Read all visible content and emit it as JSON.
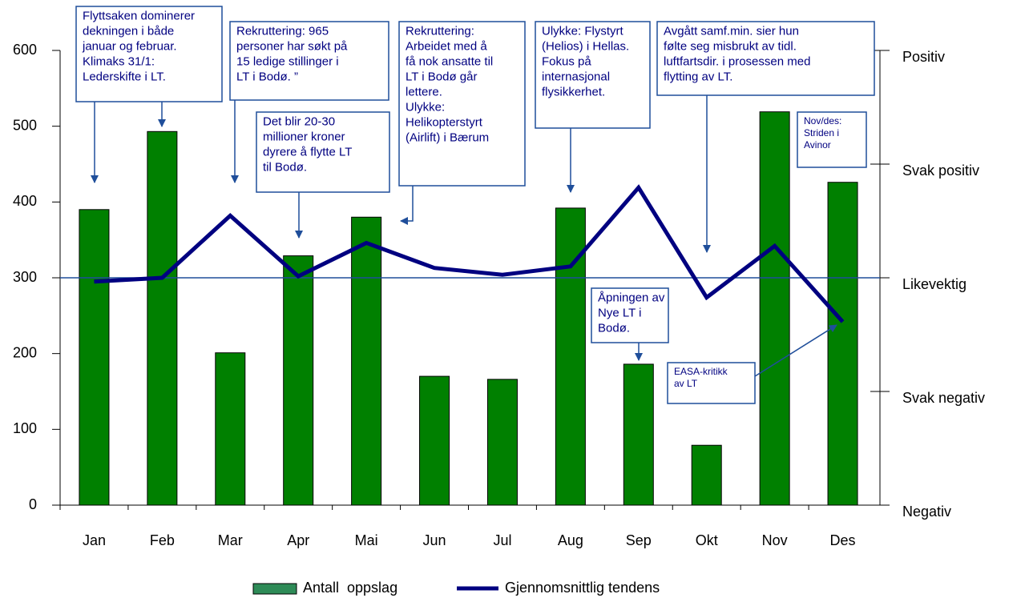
{
  "chart_data": {
    "type": "bar",
    "categories": [
      "Jan",
      "Feb",
      "Mar",
      "Apr",
      "Mai",
      "Jun",
      "Jul",
      "Aug",
      "Sep",
      "Okt",
      "Nov",
      "Des"
    ],
    "series": [
      {
        "name": "Antall  oppslag",
        "type": "bar",
        "color": "#008000",
        "values": [
          390,
          493,
          201,
          329,
          380,
          170,
          166,
          392,
          186,
          79,
          519,
          426
        ]
      },
      {
        "name": "Gjennomsnittlig tendens",
        "type": "line",
        "axis": "y2",
        "color": "#000080",
        "values": [
          295,
          300,
          382,
          302,
          346,
          313,
          304,
          315,
          419,
          274,
          342,
          242
        ]
      }
    ],
    "ylim": [
      0,
      600
    ],
    "yticks": [
      0,
      100,
      200,
      300,
      400,
      500,
      600
    ],
    "y2lim": [
      0,
      600
    ],
    "y2ticks": [
      {
        "value": 0,
        "label": "Negativ"
      },
      {
        "value": 150,
        "label": "Svak negativ"
      },
      {
        "value": 300,
        "label": "Likevektig"
      },
      {
        "value": 450,
        "label": "Svak positiv"
      },
      {
        "value": 600,
        "label": "Positiv"
      }
    ],
    "reference_line": 300,
    "annotations": [
      {
        "lines": [
          "Flyttsaken dominerer",
          "dekningen i både",
          "januar og februar.",
          "Klimaks 31/1:",
          "Lederskifte i LT."
        ]
      },
      {
        "lines": [
          "Rekruttering: 965",
          "personer har søkt på",
          "15 ledige stillinger i",
          "LT i Bodø. ”"
        ]
      },
      {
        "lines": [
          "Det blir 20-30",
          "millioner kroner",
          "dyrere å flytte LT",
          "til Bodø."
        ]
      },
      {
        "lines": [
          "Rekruttering:",
          "Arbeidet med å",
          "få nok ansatte til",
          "LT i Bodø går",
          "lettere.",
          "Ulykke:",
          "Helikopterstyrt",
          "(Airlift) i Bærum"
        ]
      },
      {
        "lines": [
          "Ulykke: Flystyrt",
          "(Helios) i Hellas.",
          "Fokus på",
          "internasjonal",
          "flysikkerhet."
        ]
      },
      {
        "lines": [
          "Avgått samf.min. sier hun",
          "følte seg misbrukt av tidl.",
          "luftfartsdir. i prosessen med",
          "flytting av LT."
        ]
      },
      {
        "lines": [
          "Nov/des:",
          "Striden i",
          "Avinor"
        ]
      },
      {
        "lines": [
          "Åpningen av",
          "Nye LT i",
          "Bodø."
        ]
      },
      {
        "lines": [
          "EASA-kritikk",
          "av LT"
        ]
      }
    ]
  }
}
